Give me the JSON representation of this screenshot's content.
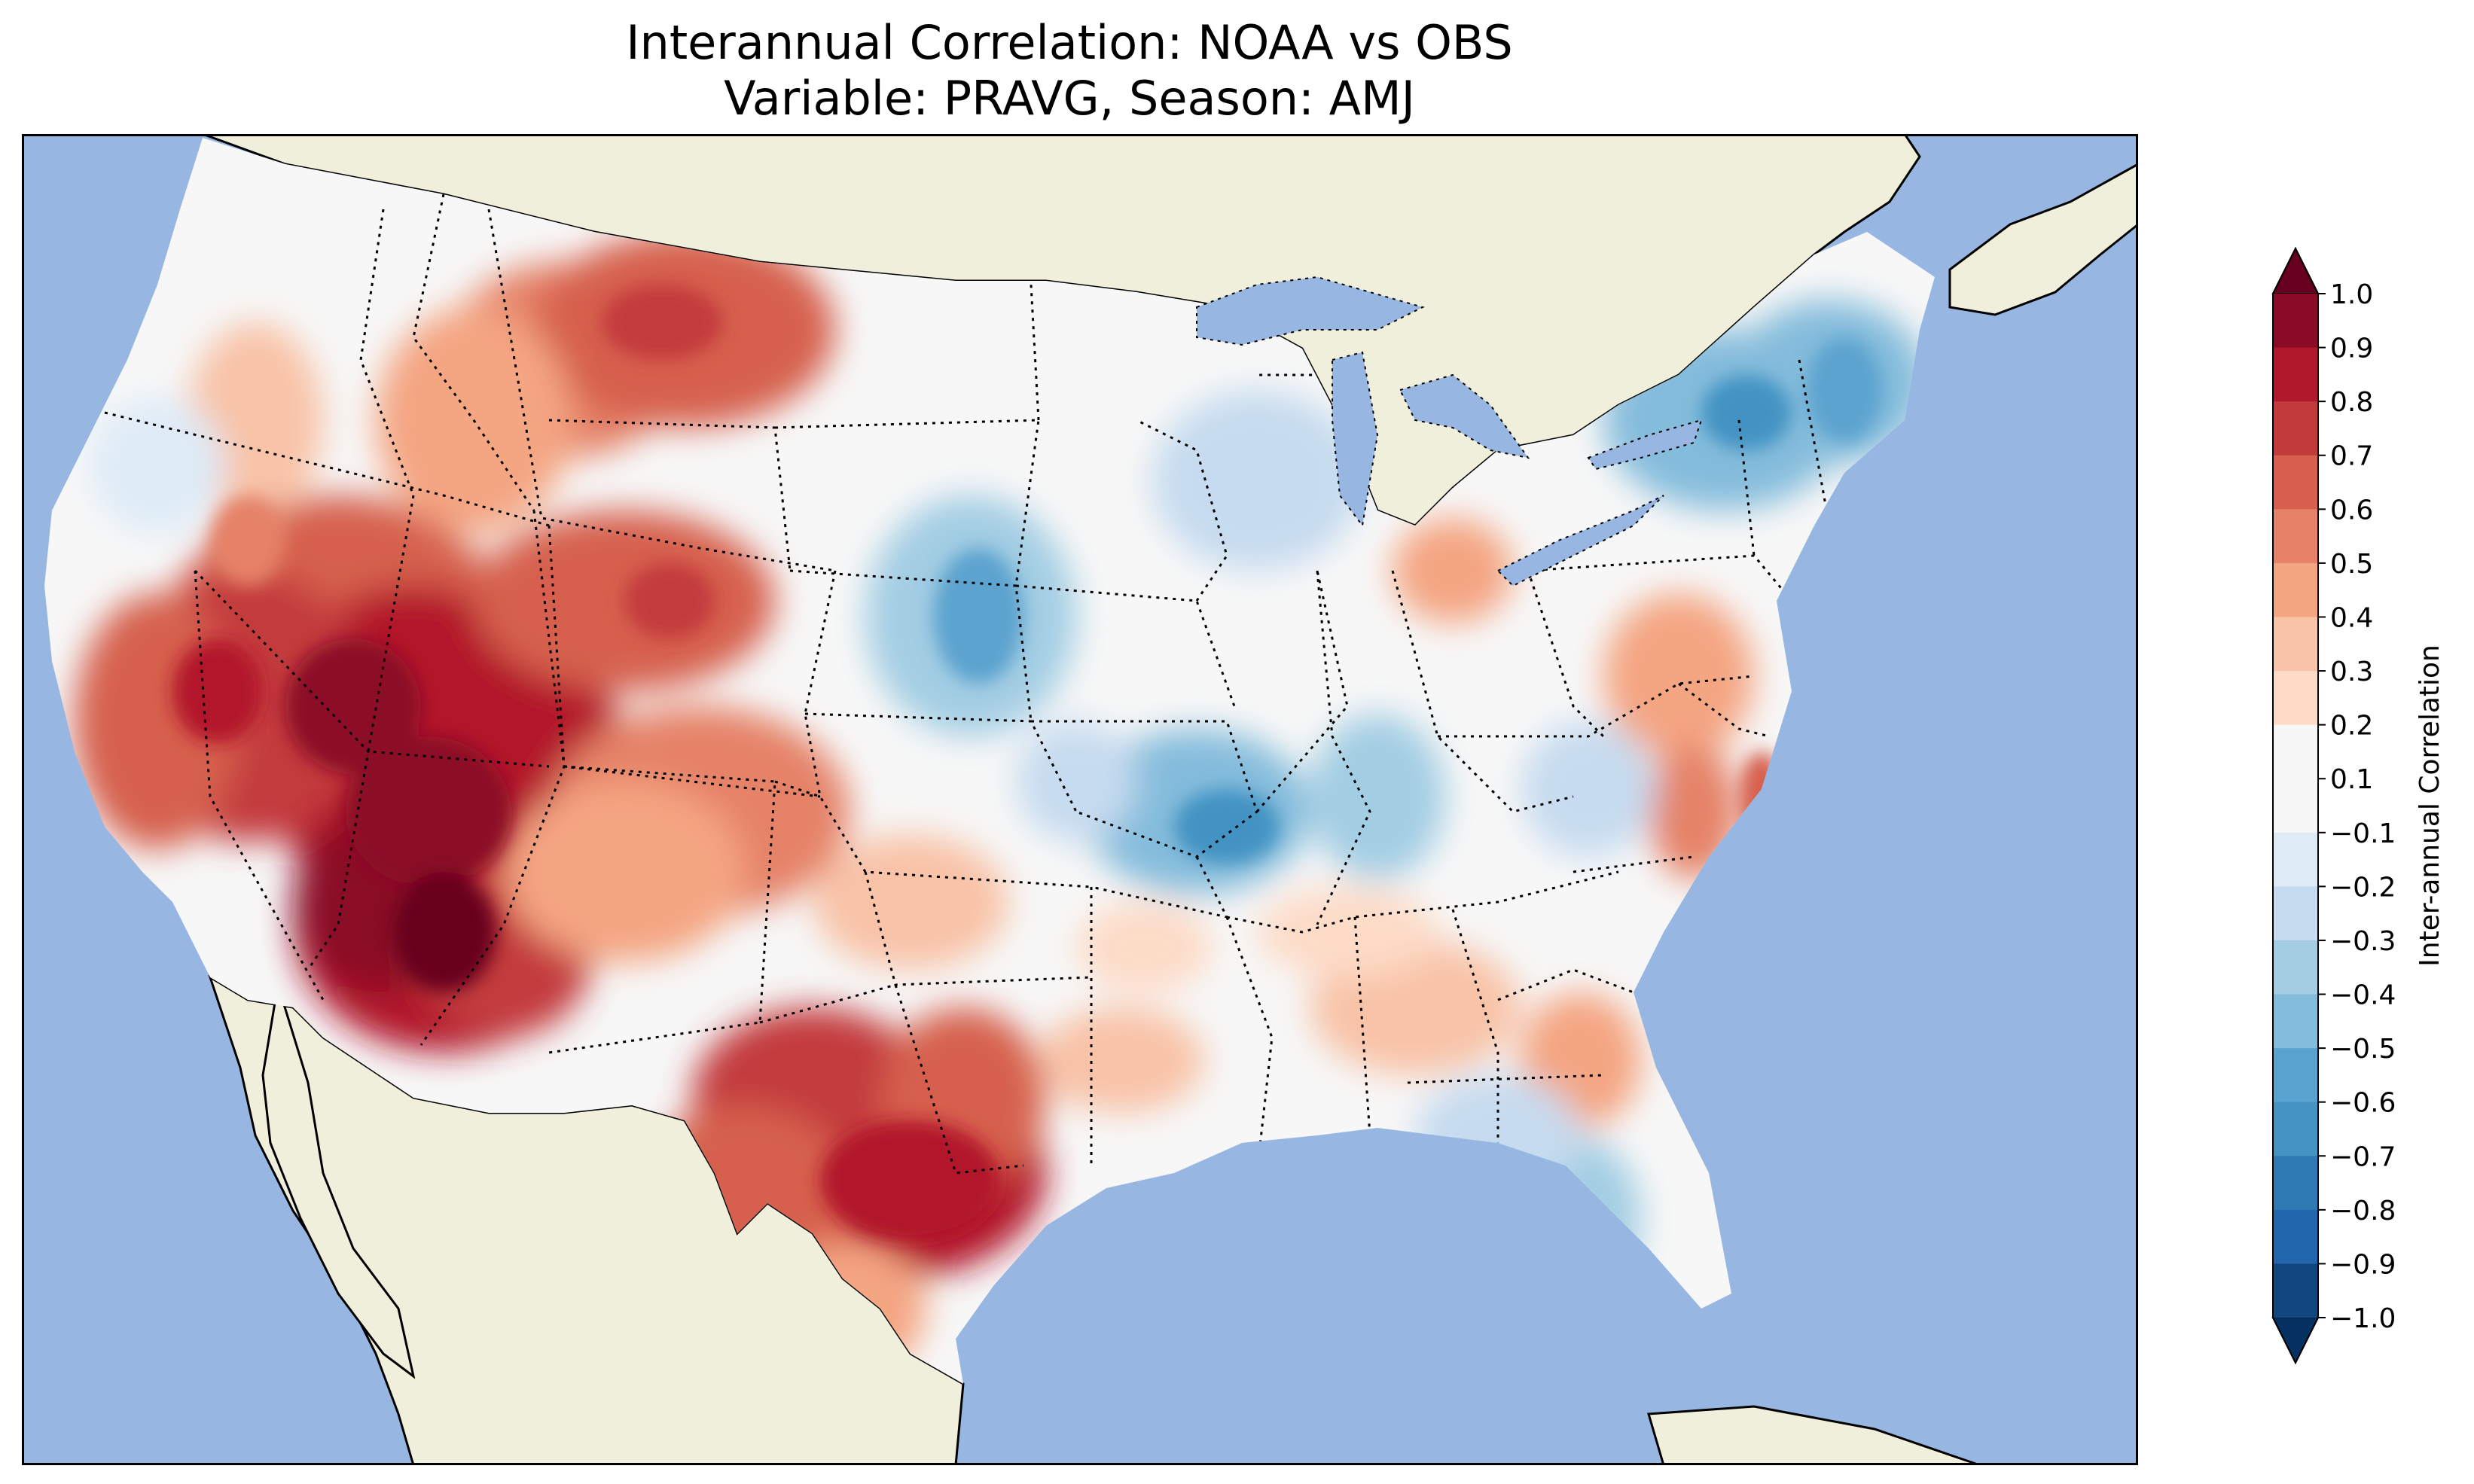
{
  "title": {
    "line1": "Interannual Correlation: NOAA vs OBS",
    "line2": "Variable: PRAVG, Season: AMJ"
  },
  "colorbar": {
    "label": "Inter-annual Correlation",
    "ticks": [
      "1.0",
      "0.9",
      "0.8",
      "0.7",
      "0.6",
      "0.5",
      "0.4",
      "0.3",
      "0.2",
      "0.1",
      "−0.1",
      "−0.2",
      "−0.3",
      "−0.4",
      "−0.5",
      "−0.6",
      "−0.7",
      "−0.8",
      "−0.9",
      "−1.0"
    ],
    "colors": [
      "#67001f",
      "#8b0a25",
      "#b2182b",
      "#c33a3d",
      "#d6604d",
      "#e58267",
      "#f4a582",
      "#f8c3a7",
      "#fddbc7",
      "#f7f7f7",
      "#f7f7f7",
      "#deebf7",
      "#c6dbef",
      "#a3cde3",
      "#84bcdb",
      "#5ba3cf",
      "#4393c3",
      "#2f79b5",
      "#2166ac",
      "#12467f",
      "#053061"
    ]
  },
  "map": {
    "ocean_color": "#97b6e1",
    "land_color": "#efefdb"
  }
}
